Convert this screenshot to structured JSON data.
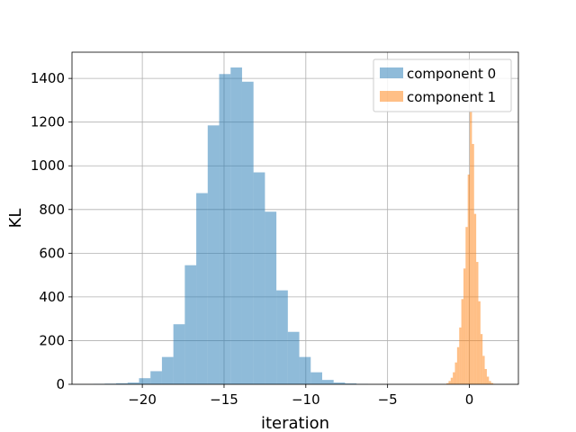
{
  "chart_data": {
    "type": "bar",
    "xlabel": "iteration",
    "ylabel": "KL",
    "xlim": [
      -24.3,
      3.0
    ],
    "ylim": [
      0,
      1520
    ],
    "grid": true,
    "legend_position": "top-right",
    "x_ticks": [
      -20,
      -15,
      -10,
      -5,
      0
    ],
    "x_tick_labels": [
      "−20",
      "−15",
      "−10",
      "−5",
      "0"
    ],
    "y_ticks": [
      0,
      200,
      400,
      600,
      800,
      1000,
      1200,
      1400
    ],
    "y_tick_labels": [
      "0",
      "200",
      "400",
      "600",
      "800",
      "1000",
      "1200",
      "1400"
    ],
    "series": [
      {
        "name": "component 0",
        "color": "#1f77b4",
        "opacity": 0.5,
        "bin_edges": [
          -23.0,
          -22.3,
          -21.6,
          -20.9,
          -20.2,
          -19.5,
          -18.8,
          -18.1,
          -17.4,
          -16.7,
          -16.0,
          -15.3,
          -14.6,
          -13.9,
          -13.2,
          -12.5,
          -11.8,
          -11.1,
          -10.4,
          -9.7,
          -9.0,
          -8.3,
          -7.6,
          -6.9,
          -6.2
        ],
        "counts": [
          2,
          3,
          5,
          8,
          28,
          60,
          125,
          275,
          545,
          875,
          1185,
          1420,
          1450,
          1385,
          970,
          790,
          430,
          240,
          125,
          55,
          20,
          8,
          4,
          2
        ]
      },
      {
        "name": "component 1",
        "color": "#ff7f0e",
        "opacity": 0.5,
        "bin_edges": [
          -1.4,
          -1.27,
          -1.14,
          -1.01,
          -0.88,
          -0.75,
          -0.62,
          -0.49,
          -0.36,
          -0.23,
          -0.1,
          0.03,
          0.16,
          0.29,
          0.42,
          0.55,
          0.68,
          0.81,
          0.94,
          1.07,
          1.2,
          1.33,
          1.46,
          1.59
        ],
        "counts": [
          5,
          15,
          30,
          55,
          100,
          170,
          260,
          390,
          530,
          720,
          960,
          1250,
          1100,
          780,
          560,
          380,
          230,
          130,
          70,
          35,
          15,
          6,
          2
        ]
      }
    ]
  }
}
